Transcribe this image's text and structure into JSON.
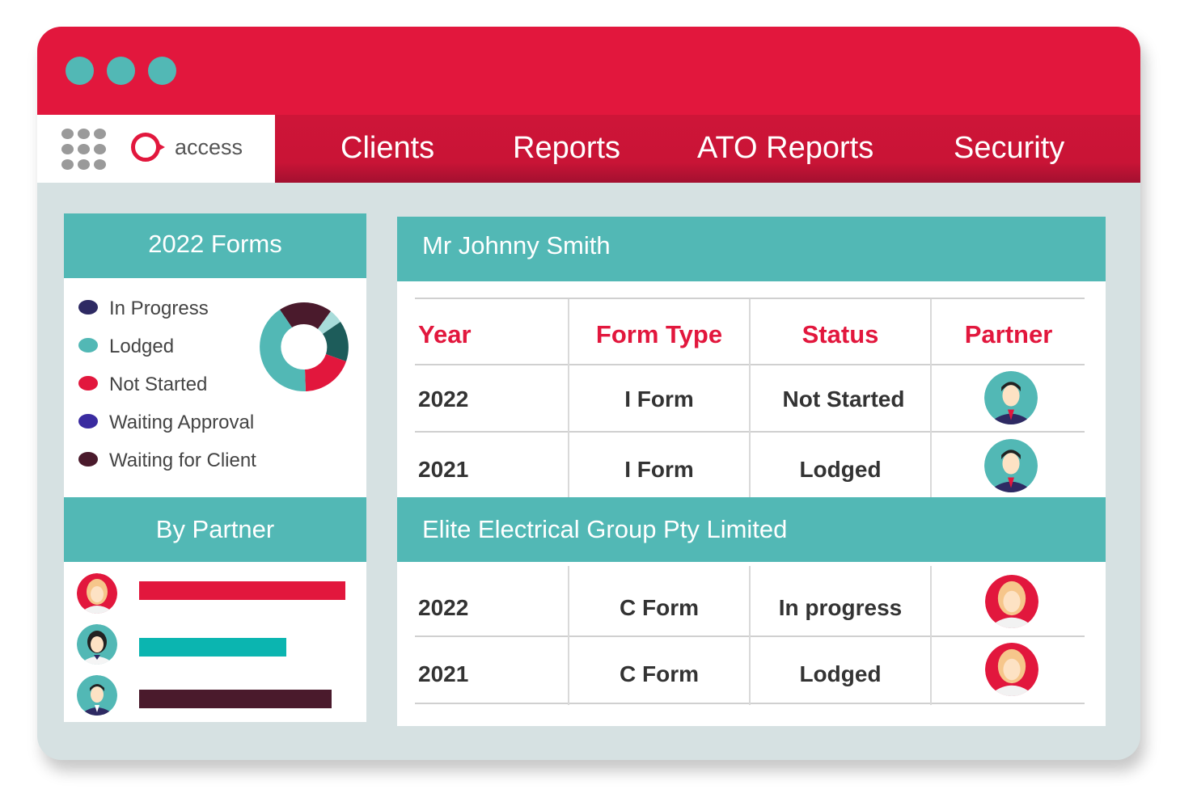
{
  "window": {
    "controls": [
      "close",
      "minimize",
      "maximize"
    ]
  },
  "app": {
    "logo_text": "access"
  },
  "nav": [
    {
      "label": "Clients"
    },
    {
      "label": "Reports"
    },
    {
      "label": "ATO Reports"
    },
    {
      "label": "Security"
    }
  ],
  "forms_panel": {
    "title": "2022 Forms",
    "legend": [
      {
        "label": "In Progress",
        "color": "#2e2a63"
      },
      {
        "label": "Lodged",
        "color": "#52b8b5"
      },
      {
        "label": "Not Started",
        "color": "#e2173d"
      },
      {
        "label": "Waiting Approval",
        "color": "#3a2ba0"
      },
      {
        "label": "Waiting for Client",
        "color": "#4a1a2c"
      }
    ]
  },
  "partner_panel": {
    "title": "By Partner",
    "bars": [
      {
        "avatar": "female-partner-avatar",
        "color": "#e2173d",
        "share": 0.91
      },
      {
        "avatar": "female-partner-2-avatar",
        "color": "#0bb5b0",
        "share": 0.65
      },
      {
        "avatar": "male-partner-avatar",
        "color": "#4a1a2c",
        "share": 0.85
      }
    ]
  },
  "table": {
    "headers": [
      "Year",
      "Form Type",
      "Status",
      "Partner"
    ],
    "clients": [
      {
        "name": "Mr Johnny Smith",
        "rows": [
          {
            "year": "2022",
            "form": "I Form",
            "status": "Not Started",
            "partner": "male-partner-avatar"
          },
          {
            "year": "2021",
            "form": "I Form",
            "status": "Lodged",
            "partner": "male-partner-avatar"
          }
        ]
      },
      {
        "name": "Elite Electrical Group Pty Limited",
        "rows": [
          {
            "year": "2022",
            "form": "C Form",
            "status": "In progress",
            "partner": "female-partner-avatar"
          },
          {
            "year": "2021",
            "form": "C Form",
            "status": "Lodged",
            "partner": "female-partner-avatar"
          }
        ]
      }
    ]
  }
}
